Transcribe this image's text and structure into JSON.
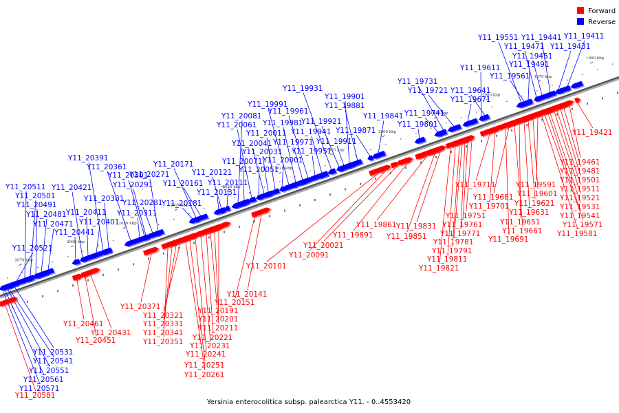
{
  "caption": "Yersinia enterocolitica subsp. palearctica Y11. - 0..4553420",
  "legend": [
    {
      "label": "Forward",
      "color": "#ff0000"
    },
    {
      "label": "Reverse",
      "color": "#0000ff"
    }
  ],
  "colors": {
    "forward": "#ff0000",
    "reverse": "#0000ff",
    "axis": "#555555"
  },
  "scale_ticks": [
    "1960 kbp",
    "1970 kbp",
    "1980 kbp",
    "1990 kbp",
    "2000 kbp",
    "2010 kbp",
    "2020 kbp",
    "2030 kbp",
    "2040 kbp",
    "2050 kbp",
    "2060 kbp",
    "2070 kbp"
  ],
  "reverse_genes": [
    "Y11_19411",
    "Y11_19431",
    "Y11_19441",
    "Y11_19451",
    "Y11_19471",
    "Y11_19491",
    "Y11_19551",
    "Y11_19561",
    "Y11_19611",
    "Y11_19641",
    "Y11_19671",
    "Y11_19721",
    "Y11_19731",
    "Y11_19741",
    "Y11_19801",
    "Y11_19841",
    "Y11_19871",
    "Y11_19881",
    "Y11_19901",
    "Y11_19911",
    "Y11_19921",
    "Y11_19931",
    "Y11_19941",
    "Y11_19951",
    "Y11_19961",
    "Y11_19971",
    "Y11_19981",
    "Y11_19991",
    "Y11_20001",
    "Y11_20011",
    "Y11_20031",
    "Y11_20041",
    "Y11_20051",
    "Y11_20061",
    "Y11_20071",
    "Y11_20081",
    "Y11_20111",
    "Y11_20121",
    "Y11_20131",
    "Y11_20161",
    "Y11_20171",
    "Y11_20181",
    "Y11_20271",
    "Y11_20281",
    "Y11_20291",
    "Y11_20301",
    "Y11_20311",
    "Y11_20361",
    "Y11_20381",
    "Y11_20391",
    "Y11_20401",
    "Y11_20411",
    "Y11_20421",
    "Y11_20441",
    "Y11_20471",
    "Y11_20481",
    "Y11_20491",
    "Y11_20501",
    "Y11_20511",
    "Y11_20521",
    "Y11_20531",
    "Y11_20541",
    "Y11_20551",
    "Y11_20561",
    "Y11_20571"
  ],
  "forward_genes": [
    "Y11_19421",
    "Y11_19461",
    "Y11_19481",
    "Y11_19501",
    "Y11_19511",
    "Y11_19521",
    "Y11_19531",
    "Y11_19541",
    "Y11_19571",
    "Y11_19581",
    "Y11_19591",
    "Y11_19601",
    "Y11_19621",
    "Y11_19631",
    "Y11_19651",
    "Y11_19661",
    "Y11_19681",
    "Y11_19691",
    "Y11_19701",
    "Y11_19711",
    "Y11_19751",
    "Y11_19761",
    "Y11_19771",
    "Y11_19781",
    "Y11_19791",
    "Y11_19811",
    "Y11_19821",
    "Y11_19831",
    "Y11_19851",
    "Y11_19861",
    "Y11_19891",
    "Y11_20021",
    "Y11_20091",
    "Y11_20101",
    "Y11_20141",
    "Y11_20151",
    "Y11_20191",
    "Y11_20201",
    "Y11_20211",
    "Y11_20221",
    "Y11_20231",
    "Y11_20241",
    "Y11_20251",
    "Y11_20261",
    "Y11_20321",
    "Y11_20331",
    "Y11_20341",
    "Y11_20351",
    "Y11_20371",
    "Y11_20431",
    "Y11_20451",
    "Y11_20461",
    "Y11_20581"
  ]
}
